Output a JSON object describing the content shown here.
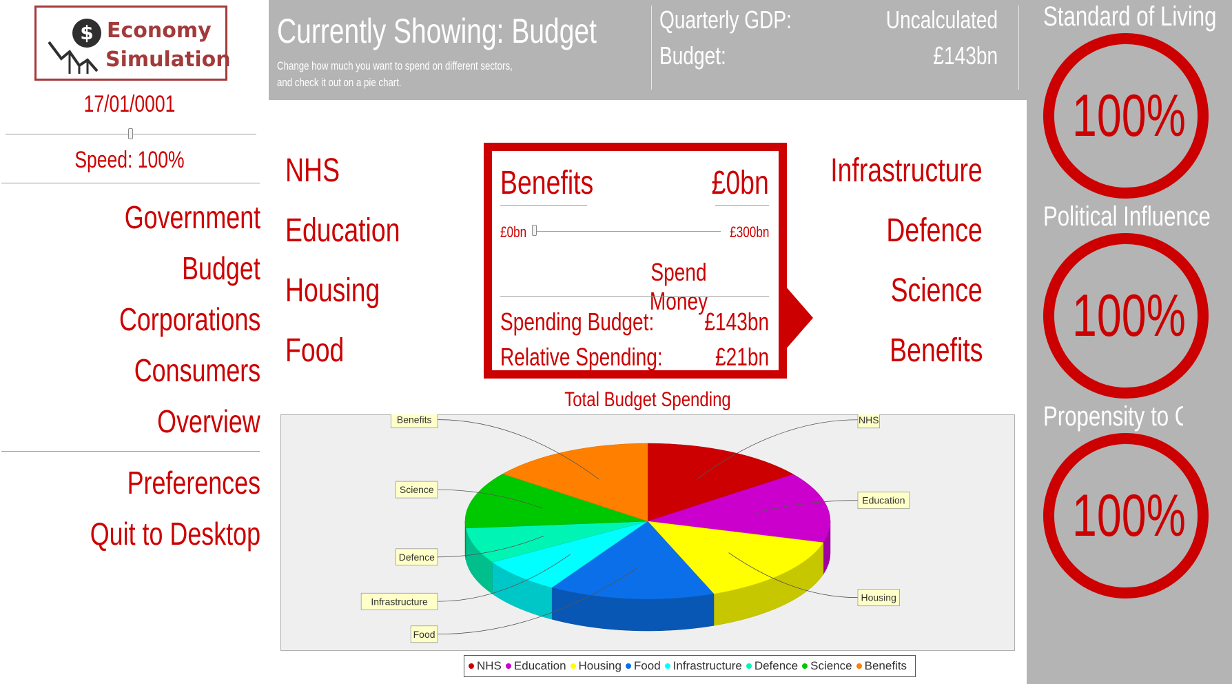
{
  "logo": {
    "line1": "Economy",
    "line2": "Simulation",
    "coin_icon": "dollar-coin-icon"
  },
  "date": "17/01/0001",
  "speed": {
    "label": "Speed: 100%",
    "value_percent": 100
  },
  "nav": {
    "items": [
      "Government",
      "Budget",
      "Corporations",
      "Consumers",
      "Overview"
    ],
    "system_items": [
      "Preferences",
      "Quit to Desktop"
    ]
  },
  "header": {
    "title": "Currently Showing: Budget",
    "subtitle_line1": "Change how much you want to spend on different sectors,",
    "subtitle_line2": "and check it out on a pie chart.",
    "gdp_label": "Quarterly GDP:",
    "gdp_value": "Uncalculated",
    "budget_label": "Budget:",
    "budget_value": "£143bn"
  },
  "sectors": {
    "left": [
      "NHS",
      "Education",
      "Housing",
      "Food"
    ],
    "right": [
      "Infrastructure",
      "Defence",
      "Science",
      "Benefits"
    ]
  },
  "spend_panel": {
    "sector": "Benefits",
    "amount": "£0bn",
    "slider_min": "£0bn",
    "slider_max": "£300bn",
    "slider_value_bn": 0,
    "button": "Spend Money",
    "spending_budget_label": "Spending Budget:",
    "spending_budget_value": "£143bn",
    "relative_label": "Relative Spending:",
    "relative_value": "£21bn"
  },
  "indicators": [
    {
      "label": "Standard of Living",
      "value": "100%"
    },
    {
      "label": "Political Influence",
      "value": "100%"
    },
    {
      "label": "Propensity to Consu",
      "value": "100%"
    }
  ],
  "colors": {
    "accent": "#cc0000",
    "panel_gray": "#b4b4b4",
    "logo_border": "#a33a3a"
  },
  "chart_data": {
    "type": "pie",
    "title": "Total Budget Spending",
    "categories": [
      "NHS",
      "Education",
      "Housing",
      "Food",
      "Infrastructure",
      "Defence",
      "Science",
      "Benefits"
    ],
    "values": [
      14.7,
      14.7,
      14.7,
      14.7,
      7.4,
      7.4,
      11.8,
      14.6
    ],
    "colors": [
      "#cc0000",
      "#cc00cc",
      "#ffff00",
      "#0a6fe8",
      "#00ffff",
      "#00f5b5",
      "#00c800",
      "#ff8000"
    ],
    "legend_position": "bottom"
  }
}
